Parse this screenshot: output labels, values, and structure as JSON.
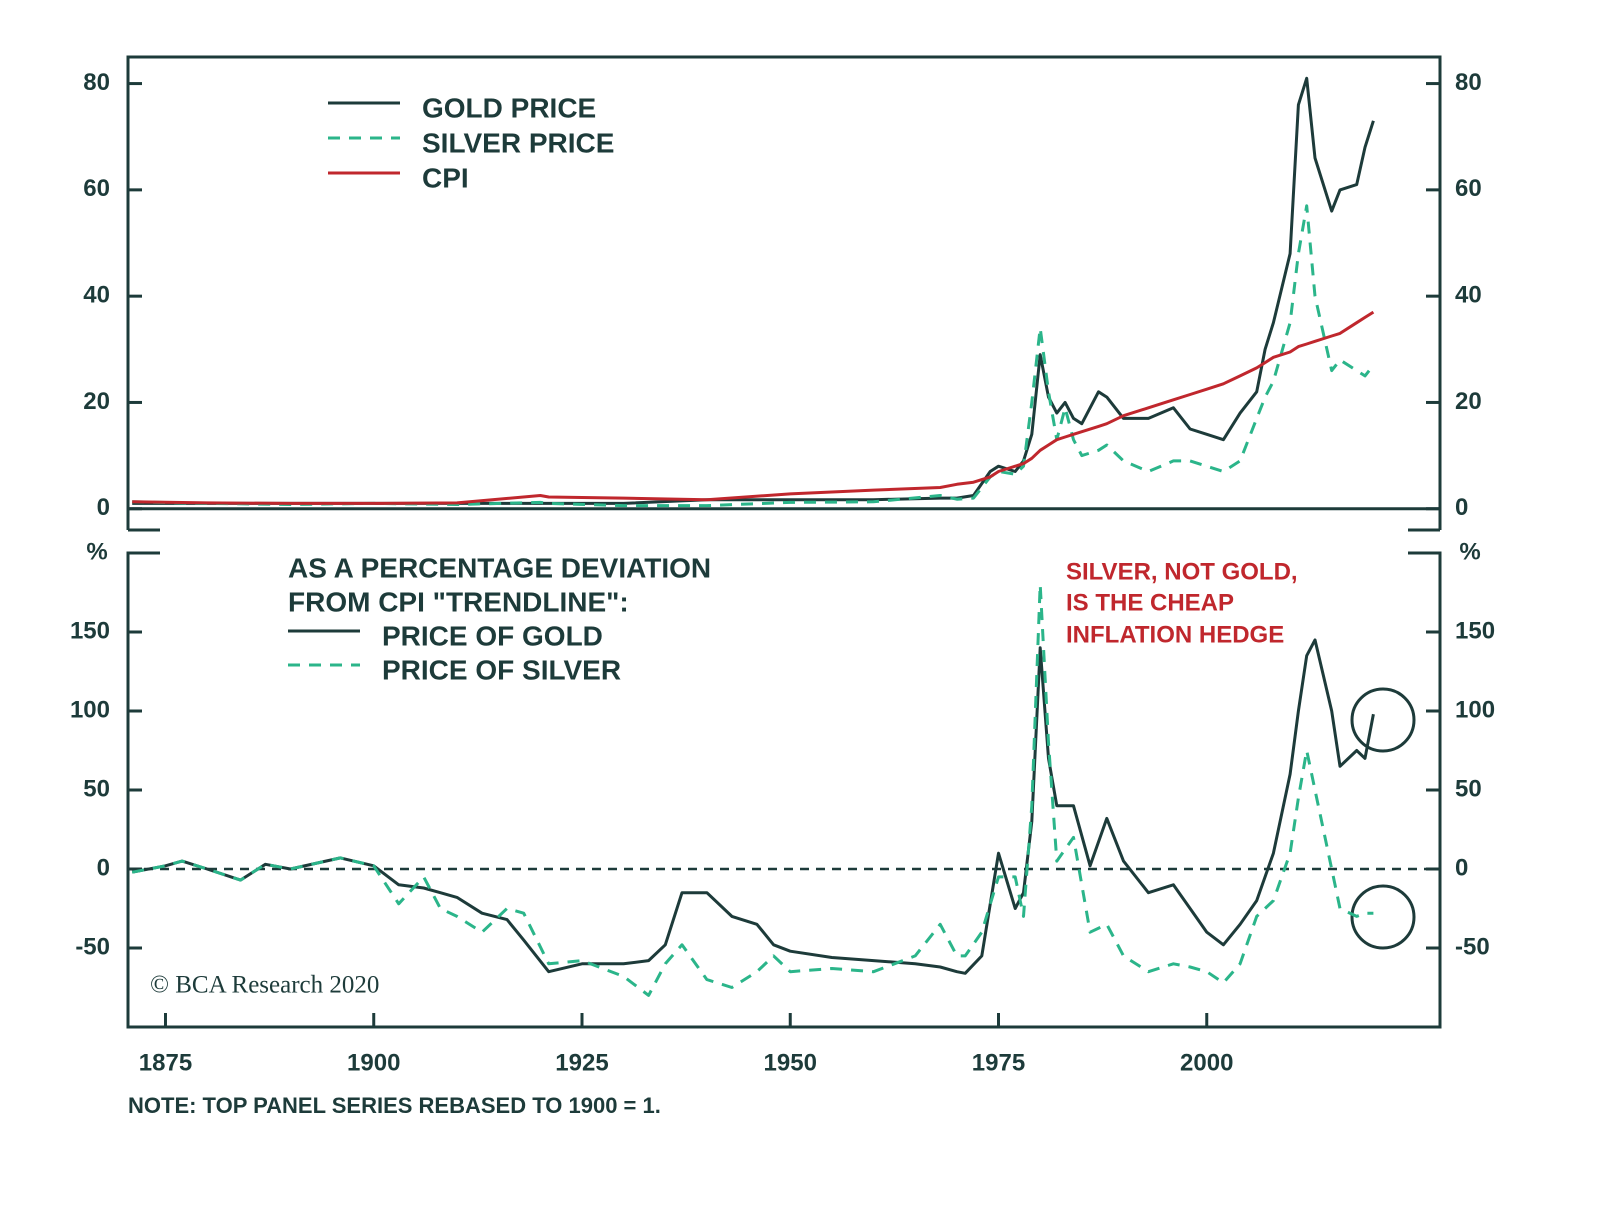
{
  "chart_data": [
    {
      "type": "line",
      "legend": "upper left",
      "x": [
        1871,
        1880,
        1890,
        1900,
        1910,
        1920,
        1921,
        1930,
        1940,
        1950,
        1960,
        1968,
        1970,
        1972,
        1974,
        1975,
        1977,
        1978,
        1979,
        1980,
        1981,
        1982,
        1983,
        1984,
        1985,
        1987,
        1988,
        1990,
        1993,
        1996,
        1998,
        2000,
        2002,
        2004,
        2006,
        2007,
        2008,
        2010,
        2011,
        2012,
        2013,
        2015,
        2016,
        2018,
        2019,
        2020
      ],
      "series": [
        {
          "name": "GOLD PRICE",
          "color": "#1d3b3a",
          "dash": "solid",
          "values": [
            1,
            1,
            1,
            1,
            1,
            1,
            1,
            1,
            1.7,
            1.7,
            1.7,
            2,
            2,
            2.5,
            7,
            8,
            7,
            9,
            14,
            29,
            21,
            18,
            20,
            17,
            16,
            22,
            21,
            17,
            17,
            19,
            15,
            14,
            13,
            18,
            22,
            30,
            35,
            48,
            76,
            81,
            66,
            56,
            60,
            61,
            68,
            73
          ]
        },
        {
          "name": "SILVER PRICE",
          "color": "#2bb58a",
          "dash": "dashed",
          "values": [
            1.3,
            1,
            0.8,
            1,
            0.8,
            1.2,
            1,
            0.6,
            0.6,
            1.2,
            1.3,
            2.5,
            1.8,
            2,
            6,
            7,
            6.5,
            8,
            20,
            34,
            22,
            13,
            19,
            13,
            10,
            11,
            12,
            9,
            7,
            9,
            9,
            8,
            7,
            9,
            17,
            21,
            24,
            35,
            48,
            57,
            40,
            26,
            28,
            26,
            25,
            27
          ]
        },
        {
          "name": "CPI",
          "color": "#c0272d",
          "dash": "solid",
          "values": [
            1.3,
            1.1,
            1,
            1,
            1.1,
            2.5,
            2.2,
            2,
            1.7,
            2.8,
            3.5,
            4,
            4.6,
            5,
            6,
            7,
            8,
            8.5,
            9.5,
            11,
            12,
            13,
            13.5,
            14,
            14.5,
            15.5,
            16,
            17.5,
            19,
            20.5,
            21.5,
            22.5,
            23.5,
            25,
            26.5,
            27.5,
            28.5,
            29.5,
            30.5,
            31,
            31.5,
            32.5,
            33,
            35,
            36,
            37
          ]
        }
      ],
      "xlim": [
        1870.5,
        2028
      ],
      "ylim": [
        -4,
        85
      ],
      "yticks": [
        0,
        20,
        40,
        60,
        80
      ],
      "hline": 0,
      "hline_style": "solid"
    },
    {
      "type": "line",
      "legend": "upper left",
      "legend_title": [
        "AS A PERCENTAGE DEVIATION",
        "FROM CPI \"TRENDLINE\":"
      ],
      "y_unit": "%",
      "annotation": [
        "SILVER, NOT GOLD,",
        "IS THE CHEAP",
        "INFLATION HEDGE"
      ],
      "x": [
        1871,
        1875,
        1877,
        1880,
        1884,
        1887,
        1890,
        1896,
        1900,
        1903,
        1906,
        1908,
        1910,
        1913,
        1916,
        1918,
        1921,
        1925,
        1930,
        1933,
        1935,
        1937,
        1940,
        1943,
        1946,
        1948,
        1950,
        1955,
        1960,
        1965,
        1968,
        1970,
        1971,
        1973,
        1975,
        1977,
        1978,
        1979,
        1980,
        1981,
        1982,
        1984,
        1986,
        1988,
        1990,
        1993,
        1996,
        1998,
        2000,
        2002,
        2004,
        2006,
        2008,
        2010,
        2011,
        2012,
        2013,
        2015,
        2016,
        2018,
        2019,
        2020
      ],
      "series": [
        {
          "name": "PRICE OF GOLD",
          "color": "#1d3b3a",
          "dash": "solid",
          "values": [
            -2,
            2,
            5,
            0,
            -7,
            3,
            0,
            7,
            2,
            -10,
            -12,
            -15,
            -18,
            -28,
            -32,
            -45,
            -65,
            -60,
            -60,
            -58,
            -48,
            -15,
            -15,
            -30,
            -35,
            -48,
            -52,
            -56,
            -58,
            -60,
            -62,
            -65,
            -66,
            -55,
            10,
            -25,
            -15,
            30,
            140,
            70,
            40,
            40,
            2,
            32,
            5,
            -15,
            -10,
            -25,
            -40,
            -48,
            -35,
            -20,
            10,
            60,
            100,
            135,
            145,
            100,
            65,
            75,
            70,
            98
          ]
        },
        {
          "name": "PRICE OF SILVER",
          "color": "#2bb58a",
          "dash": "dashed",
          "values": [
            -2,
            2,
            5,
            0,
            -7,
            3,
            0,
            7,
            2,
            -22,
            -5,
            -25,
            -30,
            -40,
            -25,
            -28,
            -60,
            -58,
            -68,
            -80,
            -60,
            -48,
            -70,
            -75,
            -65,
            -55,
            -65,
            -63,
            -65,
            -55,
            -35,
            -55,
            -55,
            -40,
            -5,
            -5,
            -30,
            40,
            180,
            80,
            5,
            20,
            -40,
            -35,
            -55,
            -65,
            -60,
            -62,
            -65,
            -72,
            -60,
            -30,
            -20,
            10,
            45,
            75,
            50,
            0,
            -25,
            -30,
            -28,
            -28
          ]
        }
      ],
      "xlim": [
        1870.5,
        2028
      ],
      "xticks": [
        1875,
        1900,
        1925,
        1950,
        1975,
        2000
      ],
      "ylim": [
        -100,
        200
      ],
      "yticks": [
        -50,
        0,
        50,
        100,
        150
      ],
      "hline": 0,
      "hline_style": "dashed"
    }
  ],
  "source": "© BCA Research 2020",
  "footnote": "NOTE: TOP PANEL SERIES REBASED TO 1900 = 1."
}
